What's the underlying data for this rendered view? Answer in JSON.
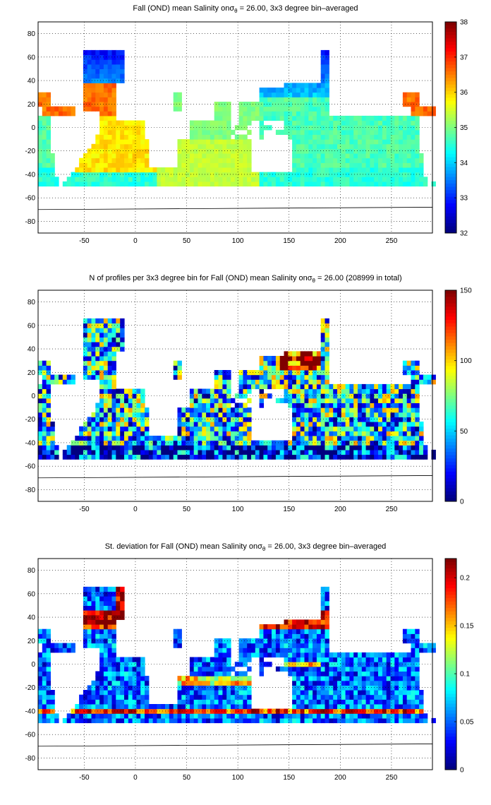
{
  "chart_data": [
    {
      "type": "heatmap",
      "title_prefix": "Fall (OND) mean Salinity on",
      "title_sigma": "σ",
      "title_sigma_sub": "θ",
      "title_suffix": " = 26.00, 3x3 degree bin–averaged",
      "x_ticks": [
        "-50",
        "0",
        "50",
        "100",
        "150",
        "200",
        "250"
      ],
      "x_tick_values": [
        -50,
        0,
        50,
        100,
        150,
        200,
        250
      ],
      "y_ticks": [
        "80",
        "60",
        "40",
        "20",
        "0",
        "-20",
        "-40",
        "-60",
        "-80"
      ],
      "y_tick_values": [
        80,
        60,
        40,
        20,
        0,
        -20,
        -40,
        -60,
        -80
      ],
      "xlim": [
        -95,
        290
      ],
      "ylim": [
        -90,
        90
      ],
      "colorbar_ticks": [
        "38",
        "37",
        "36",
        "35",
        "34",
        "33",
        "32"
      ],
      "colorbar_values": [
        38,
        37,
        36,
        35,
        34,
        33,
        32
      ],
      "clim": [
        32,
        38
      ],
      "colormap": "jet",
      "grid": true,
      "field": "salinity"
    },
    {
      "type": "heatmap",
      "title_prefix": "N of profiles per 3x3 degree bin for Fall (OND) mean Salinity on",
      "title_sigma": "σ",
      "title_sigma_sub": "θ",
      "title_suffix": " = 26.00 (208999 in total)",
      "x_ticks": [
        "-50",
        "0",
        "50",
        "100",
        "150",
        "200",
        "250"
      ],
      "x_tick_values": [
        -50,
        0,
        50,
        100,
        150,
        200,
        250
      ],
      "y_ticks": [
        "80",
        "60",
        "40",
        "20",
        "0",
        "-20",
        "-40",
        "-60",
        "-80"
      ],
      "y_tick_values": [
        80,
        60,
        40,
        20,
        0,
        -20,
        -40,
        -60,
        -80
      ],
      "xlim": [
        -95,
        290
      ],
      "ylim": [
        -90,
        90
      ],
      "colorbar_ticks": [
        "150",
        "100",
        "50",
        "0"
      ],
      "colorbar_values": [
        150,
        100,
        50,
        0
      ],
      "clim": [
        0,
        150
      ],
      "colormap": "jet",
      "grid": true,
      "field": "count"
    },
    {
      "type": "heatmap",
      "title_prefix": "St. deviation for Fall (OND) mean Salinity on",
      "title_sigma": "σ",
      "title_sigma_sub": "θ",
      "title_suffix": " = 26.00, 3x3 degree bin–averaged",
      "x_ticks": [
        "-50",
        "0",
        "50",
        "100",
        "150",
        "200",
        "250"
      ],
      "x_tick_values": [
        -50,
        0,
        50,
        100,
        150,
        200,
        250
      ],
      "y_ticks": [
        "80",
        "60",
        "40",
        "20",
        "0",
        "-20",
        "-40",
        "-60",
        "-80"
      ],
      "y_tick_values": [
        80,
        60,
        40,
        20,
        0,
        -20,
        -40,
        -60,
        -80
      ],
      "xlim": [
        -95,
        290
      ],
      "ylim": [
        -90,
        90
      ],
      "colorbar_ticks": [
        "0.2",
        "0.15",
        "0.1",
        "0.05",
        "0"
      ],
      "colorbar_values": [
        0.2,
        0.15,
        0.1,
        0.05,
        0
      ],
      "clim": [
        0,
        0.22
      ],
      "colormap": "jet",
      "grid": true,
      "field": "stdev"
    }
  ]
}
